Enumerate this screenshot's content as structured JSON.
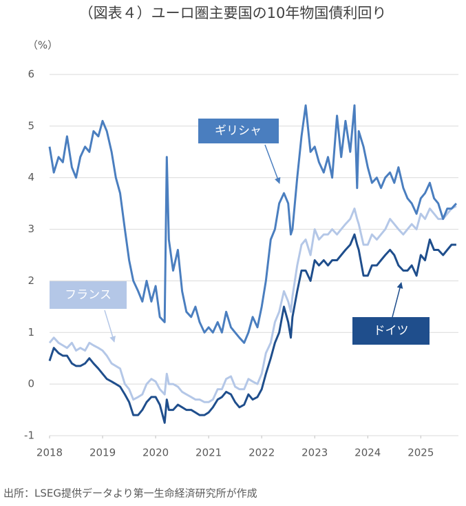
{
  "chart_data": {
    "type": "line",
    "title": "（図表４）ユーロ圏主要国の10年物国債利回り",
    "y_label": "（%）",
    "source": "出所：LSEG提供データより第一生命経済研究所が作成",
    "x": [
      2018.0,
      2018.08,
      2018.17,
      2018.25,
      2018.33,
      2018.42,
      2018.5,
      2018.58,
      2018.67,
      2018.75,
      2018.83,
      2018.92,
      2019.0,
      2019.08,
      2019.17,
      2019.25,
      2019.33,
      2019.42,
      2019.5,
      2019.58,
      2019.67,
      2019.75,
      2019.83,
      2019.92,
      2020.0,
      2020.08,
      2020.17,
      2020.21,
      2020.25,
      2020.33,
      2020.42,
      2020.5,
      2020.58,
      2020.67,
      2020.75,
      2020.83,
      2020.92,
      2021.0,
      2021.08,
      2021.17,
      2021.25,
      2021.33,
      2021.42,
      2021.5,
      2021.58,
      2021.67,
      2021.75,
      2021.83,
      2021.92,
      2022.0,
      2022.08,
      2022.17,
      2022.25,
      2022.33,
      2022.42,
      2022.5,
      2022.55,
      2022.58,
      2022.67,
      2022.75,
      2022.83,
      2022.92,
      2023.0,
      2023.08,
      2023.17,
      2023.25,
      2023.33,
      2023.42,
      2023.5,
      2023.58,
      2023.67,
      2023.75,
      2023.8,
      2023.83,
      2023.92,
      2024.0,
      2024.08,
      2024.17,
      2024.25,
      2024.33,
      2024.42,
      2024.5,
      2024.58,
      2024.67,
      2024.75,
      2024.83,
      2024.92,
      2025.0,
      2025.08,
      2025.17,
      2025.25,
      2025.33,
      2025.42,
      2025.5,
      2025.58,
      2025.67
    ],
    "series": [
      {
        "name": "ギリシャ",
        "color": "#4a7ebf",
        "values": [
          4.6,
          4.1,
          4.4,
          4.3,
          4.8,
          4.2,
          4.0,
          4.4,
          4.6,
          4.5,
          4.9,
          4.8,
          5.1,
          4.9,
          4.5,
          4.0,
          3.7,
          3.0,
          2.4,
          2.0,
          1.8,
          1.6,
          2.0,
          1.6,
          1.9,
          1.3,
          1.2,
          4.4,
          2.8,
          2.2,
          2.6,
          1.8,
          1.4,
          1.3,
          1.5,
          1.2,
          1.0,
          1.1,
          1.0,
          1.2,
          1.0,
          1.4,
          1.1,
          1.0,
          0.9,
          0.8,
          1.0,
          1.3,
          1.1,
          1.5,
          2.0,
          2.8,
          3.0,
          3.5,
          3.7,
          3.5,
          2.9,
          3.0,
          4.0,
          4.8,
          5.4,
          4.5,
          4.6,
          4.3,
          4.1,
          4.4,
          4.0,
          5.2,
          4.4,
          5.1,
          4.5,
          5.4,
          3.8,
          4.9,
          4.6,
          4.2,
          3.9,
          4.0,
          3.8,
          4.0,
          4.1,
          3.9,
          4.2,
          3.8,
          3.6,
          3.5,
          3.3,
          3.6,
          3.7,
          3.9,
          3.6,
          3.5,
          3.2,
          3.4,
          3.4,
          3.5
        ]
      },
      {
        "name": "フランス",
        "color": "#b4c7e7",
        "values": [
          0.8,
          0.9,
          0.8,
          0.75,
          0.7,
          0.8,
          0.65,
          0.7,
          0.65,
          0.8,
          0.75,
          0.7,
          0.65,
          0.55,
          0.4,
          0.35,
          0.3,
          0.0,
          -0.1,
          -0.3,
          -0.25,
          -0.2,
          0.0,
          0.1,
          0.05,
          -0.1,
          -0.2,
          0.2,
          0.0,
          0.0,
          -0.05,
          -0.15,
          -0.2,
          -0.25,
          -0.3,
          -0.3,
          -0.35,
          -0.35,
          -0.3,
          -0.1,
          -0.1,
          0.1,
          0.15,
          -0.05,
          -0.1,
          -0.1,
          0.1,
          0.05,
          0.0,
          0.2,
          0.6,
          0.8,
          1.2,
          1.4,
          1.8,
          1.6,
          1.4,
          1.7,
          2.3,
          2.7,
          2.8,
          2.5,
          3.0,
          2.8,
          2.9,
          2.9,
          3.0,
          2.9,
          3.0,
          3.1,
          3.2,
          3.4,
          3.2,
          3.1,
          2.7,
          2.7,
          2.9,
          2.8,
          2.9,
          3.0,
          3.2,
          3.1,
          3.0,
          2.9,
          3.0,
          3.1,
          3.0,
          3.3,
          3.2,
          3.4,
          3.3,
          3.2,
          3.2,
          3.3,
          3.4,
          3.45
        ]
      },
      {
        "name": "ドイツ",
        "color": "#1f4e8c",
        "values": [
          0.45,
          0.7,
          0.6,
          0.55,
          0.55,
          0.4,
          0.35,
          0.35,
          0.4,
          0.5,
          0.4,
          0.3,
          0.2,
          0.1,
          0.05,
          0.0,
          -0.05,
          -0.2,
          -0.35,
          -0.6,
          -0.6,
          -0.5,
          -0.35,
          -0.25,
          -0.25,
          -0.4,
          -0.75,
          -0.3,
          -0.5,
          -0.5,
          -0.4,
          -0.45,
          -0.5,
          -0.5,
          -0.55,
          -0.6,
          -0.6,
          -0.55,
          -0.45,
          -0.3,
          -0.25,
          -0.15,
          -0.2,
          -0.35,
          -0.45,
          -0.4,
          -0.2,
          -0.3,
          -0.25,
          -0.1,
          0.2,
          0.5,
          0.8,
          1.0,
          1.5,
          1.2,
          0.9,
          1.3,
          1.8,
          2.2,
          2.2,
          2.0,
          2.4,
          2.3,
          2.4,
          2.3,
          2.4,
          2.4,
          2.5,
          2.6,
          2.7,
          2.9,
          2.7,
          2.6,
          2.1,
          2.1,
          2.3,
          2.3,
          2.4,
          2.5,
          2.6,
          2.5,
          2.3,
          2.2,
          2.2,
          2.3,
          2.1,
          2.5,
          2.4,
          2.8,
          2.6,
          2.6,
          2.5,
          2.6,
          2.7,
          2.7
        ]
      }
    ],
    "xlim": [
      2018,
      2025.71
    ],
    "xticks": [
      2018,
      2019,
      2020,
      2021,
      2022,
      2023,
      2024,
      2025
    ],
    "ylim": [
      -1,
      6
    ],
    "yticks": [
      -1,
      0,
      1,
      2,
      3,
      4,
      5,
      6
    ],
    "grid": true
  }
}
